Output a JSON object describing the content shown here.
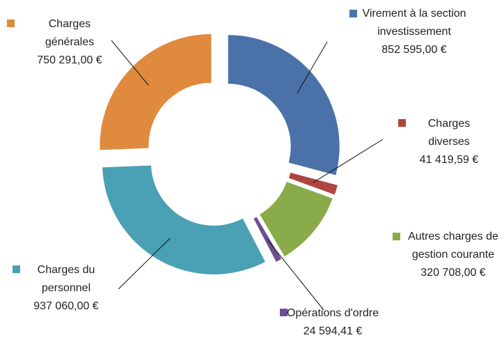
{
  "chart_data": {
    "type": "donut",
    "categories": [
      "Virement à la section investissement",
      "Charges diverses",
      "Autres charges de gestion courante",
      "Opérations d'ordre",
      "Charges du personnel",
      "Charges générales"
    ],
    "values": [
      852595.0,
      41419.59,
      320708.0,
      24594.41,
      937060.0,
      750291.0
    ],
    "value_labels": [
      "852 595,00 €",
      "41 419,59 €",
      "320 708,00 €",
      "24 594,41 €",
      "937 060,00 €",
      "750 291,00 €"
    ],
    "colors": [
      "#4a72a8",
      "#b0443e",
      "#8aab4a",
      "#6d4f91",
      "#4aa0b4",
      "#e08a3e"
    ]
  }
}
